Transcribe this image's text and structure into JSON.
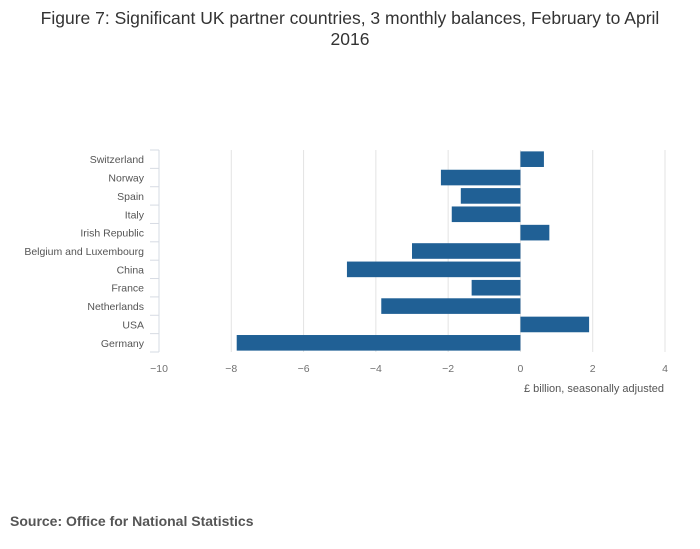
{
  "chart_data": {
    "type": "bar",
    "orientation": "horizontal",
    "title": "Figure 7: Significant UK partner countries, 3 monthly balances, February to April 2016",
    "xlabel": "£ billion, seasonally adjusted",
    "ylabel": "",
    "xlim": [
      -10,
      4
    ],
    "xticks": [
      -10,
      -8,
      -6,
      -4,
      -2,
      0,
      2,
      4
    ],
    "grid": true,
    "legend": "none",
    "categories": [
      "Switzerland",
      "Norway",
      "Spain",
      "Italy",
      "Irish Republic",
      "Belgium and Luxembourg",
      "China",
      "France",
      "Netherlands",
      "USA",
      "Germany"
    ],
    "values": [
      0.65,
      -2.2,
      -1.65,
      -1.9,
      0.8,
      -3.0,
      -4.8,
      -1.35,
      -3.85,
      1.9,
      -7.85
    ],
    "bar_color": "#206095"
  },
  "source": "Source: Office for National Statistics"
}
